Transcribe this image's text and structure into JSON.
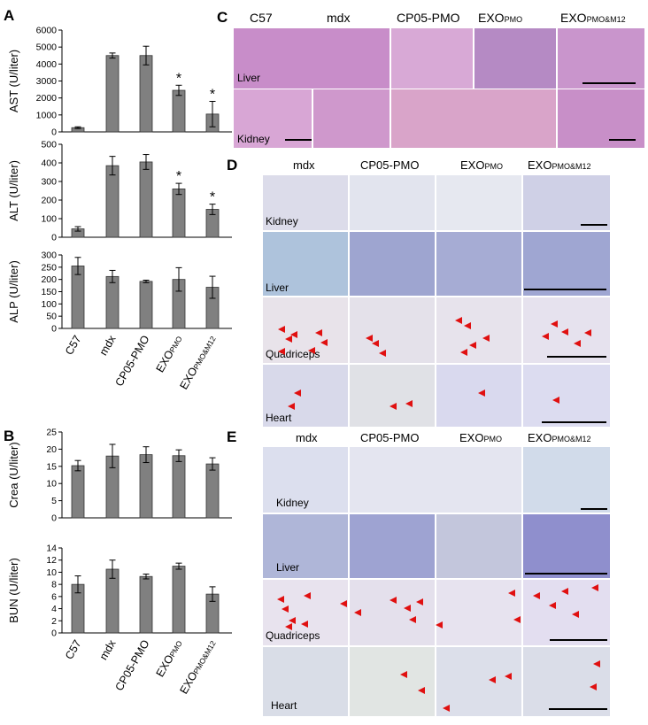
{
  "panels": {
    "A": "A",
    "B": "B",
    "C": "C",
    "D": "D",
    "E": "E"
  },
  "chart_data": [
    {
      "type": "bar",
      "panel": "A",
      "ylabel": "AST (U/liter)",
      "ylim": [
        0,
        6000
      ],
      "yticks": [
        0,
        1000,
        2000,
        3000,
        4000,
        5000,
        6000
      ],
      "categories": [
        "C57",
        "mdx",
        "CP05-PMO",
        "EXOPMO",
        "EXOPMO&M12"
      ],
      "values": [
        250,
        4500,
        4500,
        2450,
        1050
      ],
      "errors": [
        50,
        150,
        550,
        300,
        750
      ],
      "significance": [
        "",
        "",
        "",
        "*",
        "*"
      ]
    },
    {
      "type": "bar",
      "panel": "A",
      "ylabel": "ALT (U/liter)",
      "ylim": [
        0,
        500
      ],
      "yticks": [
        0,
        100,
        200,
        300,
        400,
        500
      ],
      "categories": [
        "C57",
        "mdx",
        "CP05-PMO",
        "EXOPMO",
        "EXOPMO&M12"
      ],
      "values": [
        45,
        385,
        405,
        260,
        150
      ],
      "errors": [
        12,
        50,
        40,
        30,
        28
      ],
      "significance": [
        "",
        "",
        "",
        "*",
        "*"
      ]
    },
    {
      "type": "bar",
      "panel": "A",
      "ylabel": "ALP (U/liter)",
      "ylim": [
        0,
        300
      ],
      "yticks": [
        0,
        50,
        100,
        150,
        200,
        250,
        300
      ],
      "categories": [
        "C57",
        "mdx",
        "CP05-PMO",
        "EXOPMO",
        "EXOPMO&M12"
      ],
      "values": [
        255,
        212,
        192,
        200,
        168
      ],
      "errors": [
        35,
        25,
        5,
        48,
        45
      ],
      "significance": [
        "",
        "",
        "",
        "",
        ""
      ]
    },
    {
      "type": "bar",
      "panel": "B",
      "ylabel": "Crea (U/liter)",
      "ylim": [
        0,
        25
      ],
      "yticks": [
        0,
        5,
        10,
        15,
        20,
        25
      ],
      "categories": [
        "C57",
        "mdx",
        "CP05-PMO",
        "EXOPMO",
        "EXOPMO&M12"
      ],
      "values": [
        15.2,
        18,
        18.4,
        18.1,
        15.7
      ],
      "errors": [
        1.5,
        3.4,
        2.3,
        1.7,
        1.8
      ],
      "significance": [
        "",
        "",
        "",
        "",
        ""
      ]
    },
    {
      "type": "bar",
      "panel": "B",
      "ylabel": "BUN (U/liter)",
      "ylim": [
        0,
        14
      ],
      "yticks": [
        0,
        2,
        4,
        6,
        8,
        10,
        12,
        14
      ],
      "categories": [
        "C57",
        "mdx",
        "CP05-PMO",
        "EXOPMO",
        "EXOPMO&M12"
      ],
      "values": [
        8,
        10.5,
        9.3,
        11,
        6.4
      ],
      "errors": [
        1.4,
        1.5,
        0.4,
        0.5,
        1.2
      ],
      "significance": [
        "",
        "",
        "",
        "",
        ""
      ]
    }
  ],
  "xlabels": [
    {
      "main": "C57",
      "sub": ""
    },
    {
      "main": "mdx",
      "sub": ""
    },
    {
      "main": "CP05-PMO",
      "sub": ""
    },
    {
      "main": "EXO",
      "sub": "PMO"
    },
    {
      "main": "EXO",
      "sub": "PMO&M12"
    }
  ],
  "panelC": {
    "headers": [
      {
        "main": "C57",
        "sub": ""
      },
      {
        "main": "mdx",
        "sub": ""
      },
      {
        "main": "CP05-PMO",
        "sub": ""
      },
      {
        "main": "EXO",
        "sub": "PMO"
      },
      {
        "main": "EXO",
        "sub": "PMO&M12"
      }
    ],
    "rows": [
      "Liver",
      "Kidney"
    ]
  },
  "panelD": {
    "headers": [
      {
        "main": "mdx",
        "sub": ""
      },
      {
        "main": "CP05-PMO",
        "sub": ""
      },
      {
        "main": "EXO",
        "sub": "PMO"
      },
      {
        "main": "EXO",
        "sub": "PMO&M12"
      }
    ],
    "rows": [
      "Kidney",
      "Liver",
      "Quadriceps",
      "Heart"
    ]
  },
  "panelE": {
    "headers": [
      {
        "main": "mdx",
        "sub": ""
      },
      {
        "main": "CP05-PMO",
        "sub": ""
      },
      {
        "main": "EXO",
        "sub": "PMO"
      },
      {
        "main": "EXO",
        "sub": "PMO&M12"
      }
    ],
    "rows": [
      "Kidney",
      "Liver",
      "Quadriceps",
      "Heart"
    ]
  },
  "colors": {
    "bar": "#808080",
    "he_stain": "#c98fc8",
    "he_kidney": "#d59ccf",
    "ihc_bg": "#dcdcec",
    "ihc_liver": "#9ea6d2",
    "ihc_muscle": "#e8e4ee",
    "arrow": "#e01010"
  }
}
